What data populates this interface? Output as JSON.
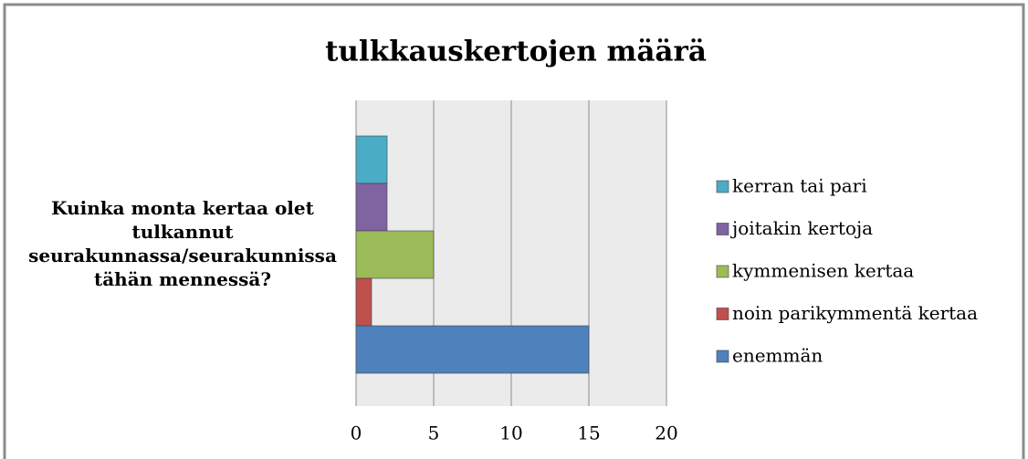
{
  "chart_data": {
    "type": "hbar",
    "title": "tulkkauskertojen määrä",
    "categories": [
      "Kuinka monta kertaa olet tulkannut seurakunnassa/seurakunnissa tähän mennessä?"
    ],
    "series": [
      {
        "name": "kerran tai pari",
        "color": "#4bacc6",
        "values": [
          2
        ]
      },
      {
        "name": "joitakin kertoja",
        "color": "#8064a2",
        "values": [
          2
        ]
      },
      {
        "name": "kymmenisen kertaa",
        "color": "#9bbb59",
        "values": [
          5
        ]
      },
      {
        "name": "noin parikymmentä kertaa",
        "color": "#c0504d",
        "values": [
          1
        ]
      },
      {
        "name": "enemmän",
        "color": "#4f81bd",
        "values": [
          15
        ]
      }
    ],
    "xlim": [
      0,
      20
    ],
    "xticks": [
      0,
      5,
      10,
      15,
      20
    ],
    "grid": true,
    "legend": "right"
  }
}
